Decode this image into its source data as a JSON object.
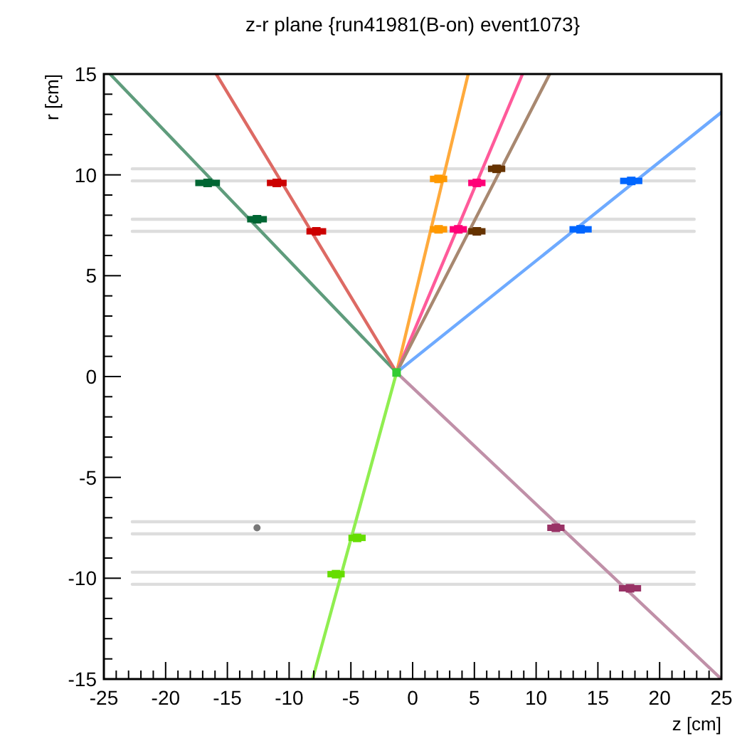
{
  "chart_data": {
    "type": "line",
    "title": "z-r plane {run41981(B-on)  event1073}",
    "xlabel": "z [cm]",
    "ylabel": "r [cm]",
    "xlim": [
      -25,
      25
    ],
    "ylim": [
      -15,
      15
    ],
    "xticks": [
      -25,
      -20,
      -15,
      -10,
      -5,
      0,
      5,
      10,
      15,
      20,
      25
    ],
    "yticks": [
      -15,
      -10,
      -5,
      0,
      5,
      10,
      15
    ],
    "series": [
      {
        "color": "#dddddd",
        "x": [
          -22.7,
          22.8
        ],
        "values": [
          10.3,
          10.3
        ]
      },
      {
        "color": "#dddddd",
        "x": [
          -22.7,
          22.8
        ],
        "values": [
          9.7,
          9.7
        ]
      },
      {
        "color": "#dddddd",
        "x": [
          -22.7,
          22.8
        ],
        "values": [
          7.8,
          7.8
        ]
      },
      {
        "color": "#dddddd",
        "x": [
          -22.7,
          22.8
        ],
        "values": [
          7.2,
          7.2
        ]
      },
      {
        "color": "#dddddd",
        "x": [
          -22.7,
          22.8
        ],
        "values": [
          -7.2,
          -7.2
        ]
      },
      {
        "color": "#dddddd",
        "x": [
          -22.7,
          22.8
        ],
        "values": [
          -7.8,
          -7.8
        ]
      },
      {
        "color": "#dddddd",
        "x": [
          -22.7,
          22.8
        ],
        "values": [
          -9.7,
          -9.7
        ]
      },
      {
        "color": "#dddddd",
        "x": [
          -22.7,
          22.8
        ],
        "values": [
          -10.3,
          -10.3
        ]
      },
      {
        "color": "#5f9c7c",
        "x": [
          -1.3,
          -24.5
        ],
        "values": [
          0.2,
          15
        ]
      },
      {
        "color": "#dd6a64",
        "x": [
          -1.3,
          -15.9
        ],
        "values": [
          0.2,
          15
        ]
      },
      {
        "color": "#ffaa3c",
        "x": [
          -1.3,
          4.5
        ],
        "values": [
          0.2,
          15
        ]
      },
      {
        "color": "#ff5a9a",
        "x": [
          -1.3,
          8.9
        ],
        "values": [
          0.2,
          15
        ]
      },
      {
        "color": "#a88870",
        "x": [
          -1.3,
          11.1
        ],
        "values": [
          0.2,
          15
        ]
      },
      {
        "color": "#6eaaff",
        "x": [
          -1.3,
          25
        ],
        "values": [
          0.2,
          13.1
        ]
      },
      {
        "color": "#90ee50",
        "x": [
          -1.3,
          -8.1
        ],
        "values": [
          0.2,
          -15
        ]
      },
      {
        "color": "#c090a8",
        "x": [
          -1.3,
          25
        ],
        "values": [
          0.2,
          -15
        ]
      },
      {
        "type": "scatter",
        "marker": "square",
        "color": "#006633",
        "x": [
          -16.6,
          -12.6
        ],
        "values": [
          9.6,
          7.8
        ],
        "xerrors": [
          1,
          0.8
        ]
      },
      {
        "type": "scatter",
        "marker": "square",
        "color": "#cc0000",
        "x": [
          -11,
          -7.8
        ],
        "values": [
          9.6,
          7.2
        ],
        "xerrors": [
          0.8,
          0.8
        ]
      },
      {
        "type": "scatter",
        "marker": "square",
        "color": "#ff9900",
        "x": [
          2.1,
          2.1
        ],
        "values": [
          9.8,
          7.3
        ],
        "xerrors": [
          0.7,
          0.7
        ]
      },
      {
        "type": "scatter",
        "marker": "square",
        "color": "#ff0077",
        "x": [
          5.2,
          3.7
        ],
        "values": [
          9.6,
          7.3
        ],
        "xerrors": [
          0.7,
          0.7
        ]
      },
      {
        "type": "scatter",
        "marker": "square",
        "color": "#663300",
        "x": [
          6.8,
          5.2
        ],
        "values": [
          10.3,
          7.2
        ],
        "xerrors": [
          0.7,
          0.7
        ]
      },
      {
        "type": "scatter",
        "marker": "square",
        "color": "#0066ff",
        "x": [
          17.7,
          13.6
        ],
        "values": [
          9.7,
          7.3
        ],
        "xerrors": [
          0.9,
          0.9
        ]
      },
      {
        "type": "scatter",
        "marker": "square",
        "color": "#66dd00",
        "x": [
          -4.5,
          -6.2
        ],
        "values": [
          -8,
          -9.8
        ],
        "xerrors": [
          0.7,
          0.7
        ]
      },
      {
        "type": "scatter",
        "marker": "square",
        "color": "#993366",
        "x": [
          11.6,
          17.6
        ],
        "values": [
          -7.5,
          -10.5
        ],
        "xerrors": [
          0.7,
          0.9
        ]
      },
      {
        "type": "scatter",
        "marker": "circle",
        "color": "#777777",
        "x": [
          -12.6
        ],
        "values": [
          -7.5
        ]
      },
      {
        "type": "scatter",
        "marker": "square",
        "color": "#33cc33",
        "x": [
          -1.3
        ],
        "values": [
          0.2
        ]
      }
    ]
  }
}
